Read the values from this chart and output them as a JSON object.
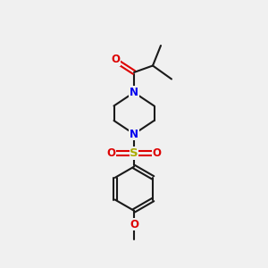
{
  "bg_color": "#f0f0f0",
  "bond_color": "#1a1a1a",
  "bond_width": 1.5,
  "n_color": "#0000ee",
  "o_color": "#dd0000",
  "s_color": "#aaaa00",
  "font_size": 8.5,
  "figsize": [
    3.0,
    3.0
  ],
  "dpi": 100,
  "xlim": [
    0,
    10
  ],
  "ylim": [
    0,
    10
  ]
}
